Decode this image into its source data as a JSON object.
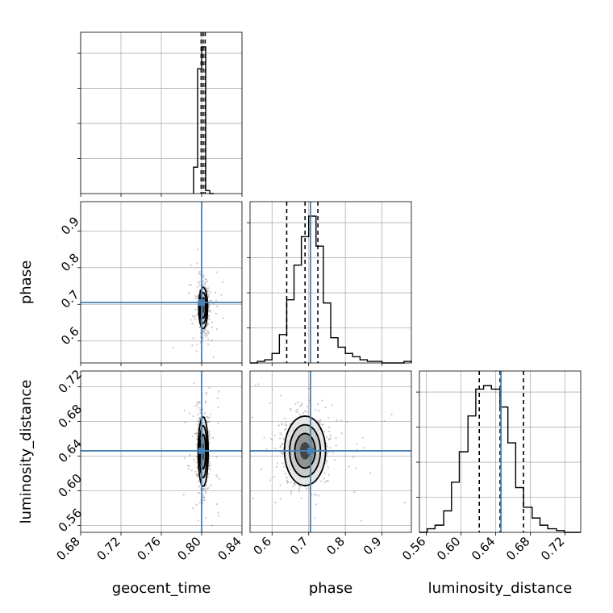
{
  "chart_data": {
    "type": "corner",
    "parameters": [
      "geocent_time",
      "phase",
      "luminosity_distance"
    ],
    "axis_labels": {
      "geocent_time": "geocent_time",
      "phase": "phase",
      "luminosity_distance": "luminosity_distance"
    },
    "ranges": {
      "geocent_time": [
        0.68,
        0.84
      ],
      "phase": [
        0.54,
        0.98
      ],
      "luminosity_distance": [
        0.552,
        0.738
      ]
    },
    "ticks": {
      "geocent_time": [
        "0.68",
        "0.72",
        "0.76",
        "0.80",
        "0.84"
      ],
      "phase_x": [
        "0.6",
        "0.7",
        "0.8",
        "0.9"
      ],
      "phase_y": [
        "0.6",
        "0.7",
        "0.8",
        "0.9"
      ],
      "luminosity_distance_x": [
        "0.56",
        "0.60",
        "0.64",
        "0.68",
        "0.72"
      ],
      "luminosity_distance_y": [
        "0.56",
        "0.60",
        "0.64",
        "0.68",
        "0.72"
      ]
    },
    "truths": {
      "geocent_time": 0.8,
      "phase": 0.705,
      "luminosity_distance": 0.646
    },
    "quantiles": {
      "geocent_time": [
        0.7995,
        0.8015,
        0.8035
      ],
      "phase": [
        0.64,
        0.69,
        0.725
      ],
      "luminosity_distance": [
        0.621,
        0.645,
        0.672
      ]
    },
    "histograms": {
      "geocent_time": {
        "bins": [
          0.792,
          0.796,
          0.8,
          0.804,
          0.808,
          0.812
        ],
        "counts": [
          0.18,
          0.85,
          1.0,
          0.02,
          0.0
        ]
      },
      "phase": {
        "bins": [
          0.54,
          0.56,
          0.58,
          0.6,
          0.62,
          0.64,
          0.66,
          0.68,
          0.7,
          0.72,
          0.74,
          0.76,
          0.78,
          0.8,
          0.82,
          0.84,
          0.86,
          0.88,
          0.9,
          0.92,
          0.94,
          0.96,
          0.98
        ],
        "counts": [
          0.0,
          0.01,
          0.02,
          0.06,
          0.18,
          0.4,
          0.62,
          0.8,
          0.93,
          0.74,
          0.38,
          0.16,
          0.1,
          0.06,
          0.04,
          0.02,
          0.01,
          0.01,
          0.0,
          0.0,
          0.0,
          0.01
        ]
      },
      "luminosity_distance": {
        "bins": [
          0.552,
          0.561,
          0.57,
          0.58,
          0.589,
          0.598,
          0.608,
          0.617,
          0.626,
          0.635,
          0.645,
          0.654,
          0.663,
          0.672,
          0.682,
          0.691,
          0.7,
          0.71,
          0.719,
          0.728,
          0.738
        ],
        "counts": [
          0.0,
          0.02,
          0.04,
          0.12,
          0.28,
          0.45,
          0.65,
          0.8,
          0.82,
          0.8,
          0.7,
          0.5,
          0.25,
          0.14,
          0.08,
          0.04,
          0.02,
          0.01,
          0.0,
          0.0
        ]
      }
    },
    "contours_2d": [
      {
        "x": "geocent_time",
        "y": "phase",
        "center": [
          0.8015,
          0.69
        ],
        "sigma_x": 0.0022,
        "sigma_y": 0.028
      },
      {
        "x": "geocent_time",
        "y": "luminosity_distance",
        "center": [
          0.8015,
          0.645
        ],
        "sigma_x": 0.0025,
        "sigma_y": 0.02
      },
      {
        "x": "phase",
        "y": "luminosity_distance",
        "center": [
          0.69,
          0.646
        ],
        "sigma_x": 0.028,
        "sigma_y": 0.02
      }
    ]
  }
}
